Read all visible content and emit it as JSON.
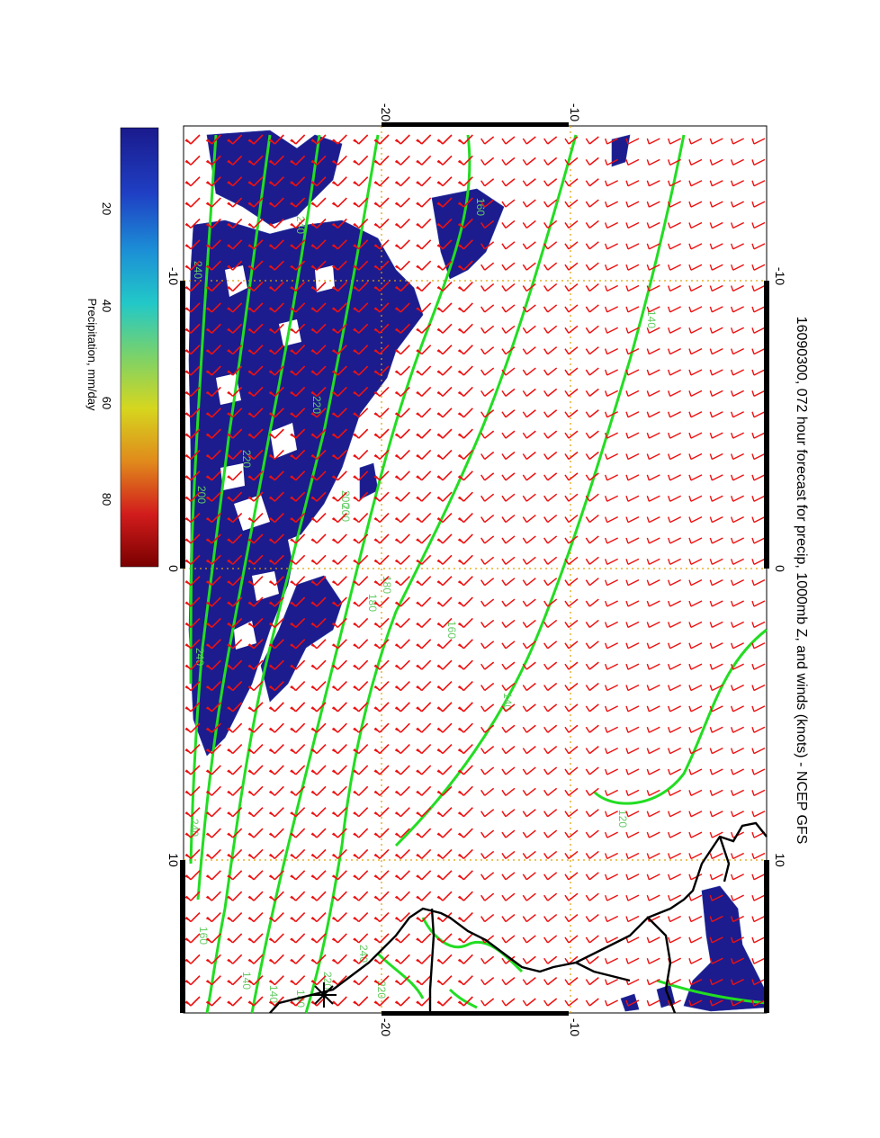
{
  "title": "16090300, 072 hour forecast for precip, 1000mb Z, and winds (knots) - NCEP GFS",
  "colorbar": {
    "label": "Precipitation, mm/day",
    "ticks": [
      "20",
      "40",
      "60",
      "80"
    ],
    "stops": [
      "#1a1a8c",
      "#1f3fc4",
      "#1c8fd6",
      "#22c8c8",
      "#7ad26a",
      "#d6d61e",
      "#e08a1c",
      "#d21c1c",
      "#7a0000"
    ]
  },
  "axes": {
    "latitude_ticks_top": [
      "-20",
      "-10"
    ],
    "latitude_ticks_bottom": [
      "-20",
      "-10"
    ],
    "longitude_ticks_left": [
      "-10",
      "0",
      "10"
    ],
    "longitude_ticks_right": [
      "-10",
      "0",
      "10"
    ]
  },
  "contours": {
    "line_color": "#22dd22",
    "labels": [
      "240",
      "220",
      "200",
      "180",
      "160",
      "140",
      "120",
      "140",
      "160",
      "180",
      "200",
      "220",
      "240",
      "200",
      "240",
      "240",
      "160",
      "140",
      "140",
      "180",
      "220",
      "240",
      "220"
    ]
  },
  "colors": {
    "wind_barb": "#ee1111",
    "precip_fill": "#1c1c8e",
    "coastline": "#000000",
    "grid": "#e0a000",
    "frame": "#000000"
  },
  "map_features": {
    "station_marker": "asterisk-marker",
    "wind_field": "red-wind-barbs"
  }
}
